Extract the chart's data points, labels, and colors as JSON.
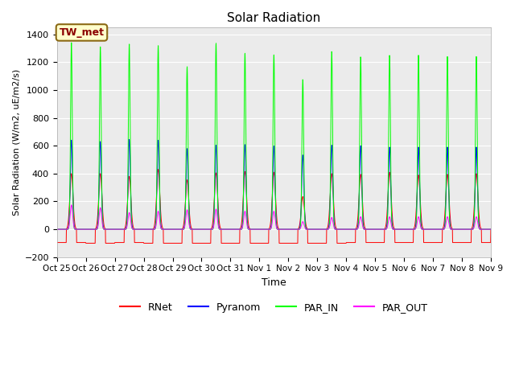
{
  "title": "Solar Radiation",
  "ylabel": "Solar Radiation (W/m2, uE/m2/s)",
  "xlabel": "Time",
  "ylim": [
    -200,
    1450
  ],
  "yticks": [
    -200,
    0,
    200,
    400,
    600,
    800,
    1000,
    1200,
    1400
  ],
  "background_color": "#ebebeb",
  "figure_color": "#ffffff",
  "colors": {
    "RNet": "#ff0000",
    "Pyranom": "#0000ff",
    "PAR_IN": "#00ff00",
    "PAR_OUT": "#ff00ff"
  },
  "annotation_text": "TW_met",
  "annotation_facecolor": "#ffffcc",
  "annotation_edgecolor": "#8b6914",
  "annotation_textcolor": "#8b0000",
  "n_days": 15,
  "x_tick_labels": [
    "Oct 25",
    "Oct 26",
    "Oct 27",
    "Oct 28",
    "Oct 29",
    "Oct 30",
    "Oct 31",
    "Nov 1",
    "Nov 2",
    "Nov 3",
    "Nov 4",
    "Nov 5",
    "Nov 6",
    "Nov 7",
    "Nov 8",
    "Nov 9"
  ],
  "PAR_IN_peaks": [
    1340,
    1310,
    1330,
    1320,
    1170,
    1340,
    1270,
    1260,
    1080,
    1280,
    1240,
    1250,
    1250,
    1240,
    1240
  ],
  "Pyranom_peaks": [
    640,
    630,
    645,
    640,
    580,
    605,
    610,
    600,
    535,
    605,
    600,
    590,
    590,
    590,
    590
  ],
  "RNet_peaks": [
    400,
    400,
    380,
    430,
    355,
    405,
    415,
    410,
    235,
    400,
    395,
    410,
    390,
    395,
    400
  ],
  "PAR_OUT_peaks": [
    175,
    155,
    120,
    130,
    140,
    145,
    130,
    130,
    55,
    85,
    90,
    90,
    90,
    90,
    90
  ],
  "RNet_night": [
    -95,
    -100,
    -95,
    -100,
    -100,
    -100,
    -100,
    -100,
    -100,
    -100,
    -95,
    -95,
    -95,
    -95,
    -95
  ],
  "pts_per_day": 144,
  "day_start": 0.25,
  "day_end": 0.75,
  "par_in_sigma": 0.03,
  "pyranom_sigma": 0.038,
  "rnet_sigma": 0.055,
  "par_out_sigma": 0.042
}
